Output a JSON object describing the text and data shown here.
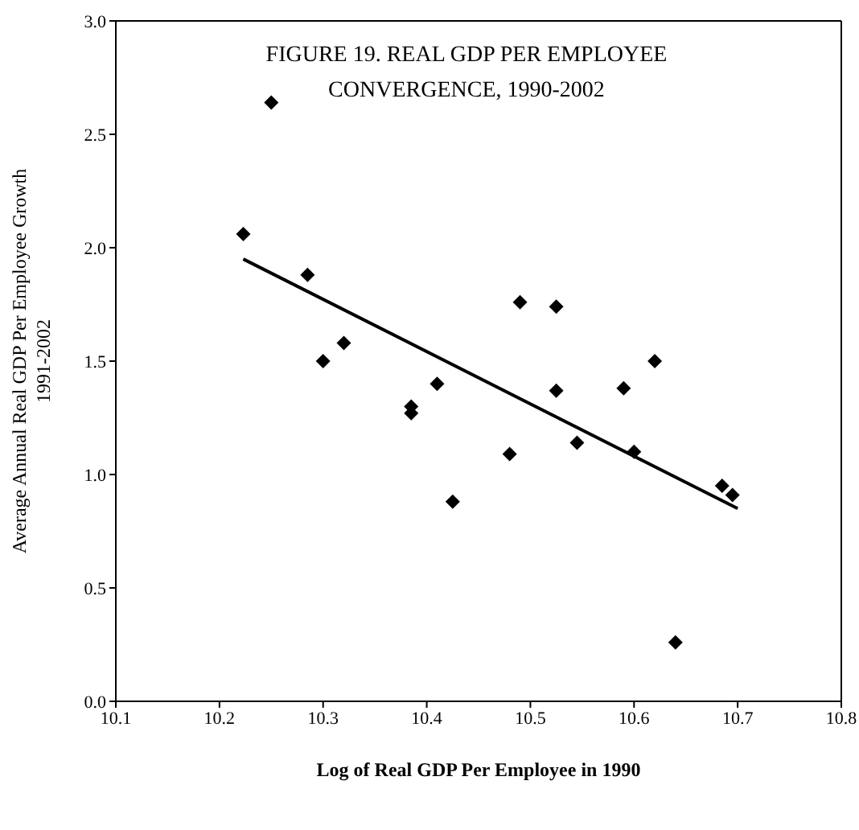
{
  "chart_data": {
    "type": "scatter",
    "title": "FIGURE 19. REAL GDP PER EMPLOYEE\nCONVERGENCE, 1990-2002",
    "xlabel": "Log of Real GDP Per Employee in 1990",
    "ylabel": "Average Annual Real GDP Per Employee Growth\n1991-2002",
    "xlim": [
      10.1,
      10.8
    ],
    "xticks": [
      10.1,
      10.2,
      10.3,
      10.4,
      10.5,
      10.6,
      10.7,
      10.8
    ],
    "ylim": [
      0,
      3
    ],
    "yticks": [
      {
        "value": 0,
        "label": "0.0"
      },
      0.5,
      {
        "value": 1,
        "label": "1.0"
      },
      1.5,
      {
        "value": 2,
        "label": "2.0"
      },
      2.5,
      {
        "value": 3,
        "label": "3.0"
      }
    ],
    "marker": "diamond",
    "series": [
      {
        "color": "#000000",
        "x": [
          10.223,
          10.25,
          10.285,
          10.3,
          10.32,
          10.385,
          10.385,
          10.41,
          10.425,
          10.48,
          10.49,
          10.525,
          10.525,
          10.545,
          10.59,
          10.6,
          10.62,
          10.64,
          10.685,
          10.695
        ],
        "values": [
          2.06,
          2.64,
          1.88,
          1.5,
          1.58,
          1.3,
          1.27,
          1.4,
          0.88,
          1.09,
          1.76,
          1.74,
          1.37,
          1.14,
          1.38,
          1.1,
          1.5,
          0.26,
          0.95,
          0.91
        ]
      },
      {
        "type": "line",
        "color": "#000000",
        "line_style": "solid",
        "marker": "none",
        "x": [
          10.223,
          10.7
        ],
        "values": [
          1.95,
          0.85
        ]
      }
    ]
  }
}
